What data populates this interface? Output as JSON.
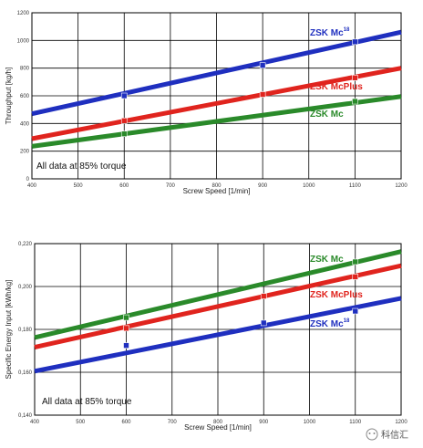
{
  "chart_data": [
    {
      "type": "line",
      "xlabel": "Screw Speed [1/min]",
      "ylabel": "Throughput [kg/h]",
      "xlim": [
        400,
        1200
      ],
      "ylim": [
        0,
        1200
      ],
      "xticks": [
        400,
        500,
        600,
        700,
        800,
        900,
        1000,
        1100,
        1200
      ],
      "yticks": [
        0,
        200,
        400,
        600,
        800,
        1000,
        1200
      ],
      "x_tick_labels": [
        "400",
        "500",
        "600",
        "700",
        "800",
        "900",
        "1000",
        "1100",
        "1200"
      ],
      "y_tick_labels": [
        "0",
        "200",
        "400",
        "600",
        "800",
        "1000",
        "1200"
      ],
      "grid": true,
      "annotation": "All data at 85% torque",
      "series": [
        {
          "name": "ZSK Mc18",
          "label": "ZSK Mc",
          "sup": "18",
          "color": "#1f2fbf",
          "line": [
            [
              400,
              470
            ],
            [
              1200,
              1060
            ]
          ],
          "points": [
            [
              600,
              600
            ],
            [
              900,
              820
            ],
            [
              1100,
              990
            ]
          ]
        },
        {
          "name": "ZSK McPlus",
          "label": "ZSK McPlus",
          "sup": "",
          "color": "#e0241e",
          "line": [
            [
              400,
              290
            ],
            [
              1200,
              800
            ]
          ],
          "points": [
            [
              600,
              420
            ],
            [
              900,
              610
            ],
            [
              1100,
              730
            ]
          ]
        },
        {
          "name": "ZSK Mc",
          "label": "ZSK Mc",
          "sup": "",
          "color": "#2a8a2a",
          "line": [
            [
              400,
              235
            ],
            [
              1200,
              595
            ]
          ],
          "points": [
            [
              600,
              325
            ],
            [
              1100,
              560
            ]
          ]
        }
      ]
    },
    {
      "type": "line",
      "xlabel": "Screw Speed [1/min]",
      "ylabel": "Specific Energy Input [kWh/kg]",
      "xlim": [
        400,
        1200
      ],
      "ylim": [
        0.14,
        0.22
      ],
      "xticks": [
        400,
        500,
        600,
        700,
        800,
        900,
        1000,
        1100,
        1200
      ],
      "yticks": [
        0.14,
        0.16,
        0.18,
        0.2,
        0.22
      ],
      "x_tick_labels": [
        "400",
        "500",
        "600",
        "700",
        "800",
        "900",
        "1000",
        "1100",
        "1200"
      ],
      "y_tick_labels": [
        "0,140",
        "0,160",
        "0,180",
        "0,200",
        "0,220"
      ],
      "grid": true,
      "annotation": "All data at 85% torque",
      "series": [
        {
          "name": "ZSK Mc",
          "label": "ZSK Mc",
          "sup": "",
          "color": "#2a8a2a",
          "line": [
            [
              400,
              0.1762
            ],
            [
              1200,
              0.2163
            ]
          ],
          "points": [
            [
              600,
              0.1855
            ],
            [
              1100,
              0.2115
            ]
          ]
        },
        {
          "name": "ZSK McPlus",
          "label": "ZSK McPlus",
          "sup": "",
          "color": "#e0241e",
          "line": [
            [
              400,
              0.1717
            ],
            [
              1200,
              0.2097
            ]
          ],
          "points": [
            [
              600,
              0.1805
            ],
            [
              900,
              0.1955
            ],
            [
              1100,
              0.2045
            ]
          ]
        },
        {
          "name": "ZSK Mc18",
          "label": "ZSK Mc",
          "sup": "18",
          "color": "#1f2fbf",
          "line": [
            [
              400,
              0.1605
            ],
            [
              1200,
              0.1945
            ]
          ],
          "points": [
            [
              600,
              0.1725
            ],
            [
              900,
              0.183
            ],
            [
              1100,
              0.1885
            ]
          ]
        }
      ]
    }
  ],
  "watermark": "科信汇"
}
